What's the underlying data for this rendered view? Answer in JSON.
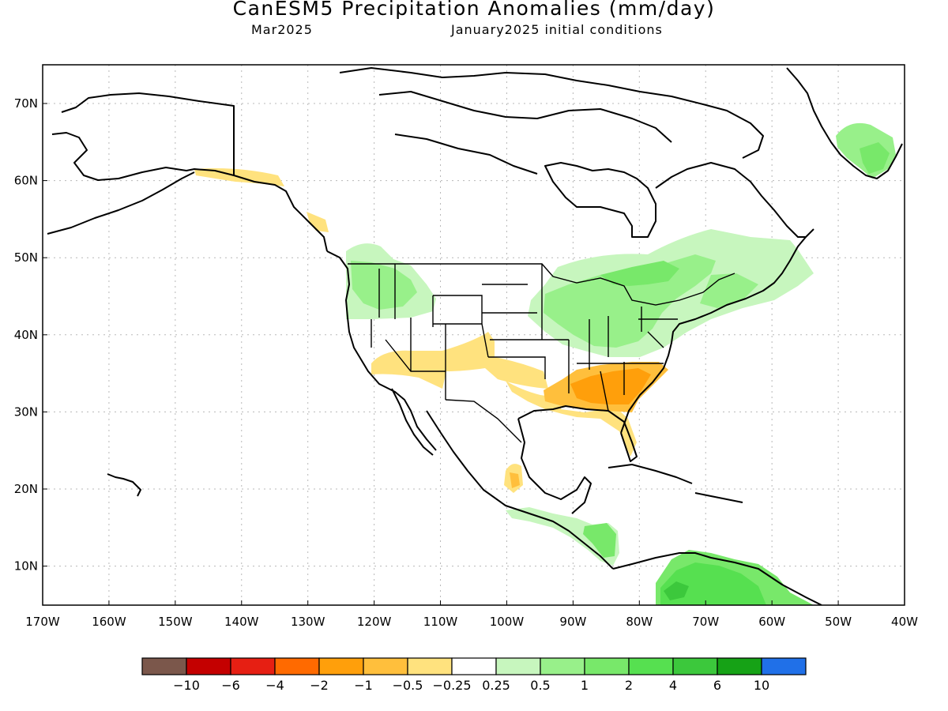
{
  "title": "CanESM5 Precipitation Anomalies (mm/day)",
  "subtitle_left": "Mar2025",
  "subtitle_right": "January2025 initial conditions",
  "lat_labels": [
    "70N",
    "60N",
    "50N",
    "40N",
    "30N",
    "20N",
    "10N"
  ],
  "lon_labels": [
    "170W",
    "160W",
    "150W",
    "140W",
    "130W",
    "120W",
    "110W",
    "100W",
    "90W",
    "80W",
    "70W",
    "60W",
    "50W",
    "40W"
  ],
  "colorbar": {
    "colors": [
      "#7b574b",
      "#c40000",
      "#e61f13",
      "#ff6a00",
      "#ff9f0b",
      "#ffbf3c",
      "#ffe27e",
      "#ffffff",
      "#c7f6be",
      "#98f08a",
      "#78e86a",
      "#56e050",
      "#3cc83c",
      "#16a216",
      "#2070e8"
    ],
    "labels": [
      "−10",
      "−6",
      "−4",
      "−2",
      "−1",
      "−0.5",
      "−0.25",
      "0.25",
      "0.5",
      "1",
      "2",
      "4",
      "6",
      "10"
    ]
  },
  "map": {
    "region": "North America",
    "lon_range": [
      "170W",
      "40W"
    ],
    "lat_range": [
      "5N",
      "75N"
    ],
    "anomaly_regions": [
      {
        "region": "Desert Southwest / southern Rockies",
        "category": "−0.5 to −0.25"
      },
      {
        "region": "Southeastern United States",
        "category": "−2 to −1"
      },
      {
        "region": "Gulf coast",
        "category": "−1 to −0.5"
      },
      {
        "region": "Southern Alaska coast",
        "category": "−0.5 to −0.25"
      },
      {
        "region": "Pacific Northwest / northern Rockies",
        "category": "0.25 to 1"
      },
      {
        "region": "Great Lakes / Northeast / Ohio Valley",
        "category": "0.25 to 2"
      },
      {
        "region": "Eastern Canada",
        "category": "0.25 to 1"
      },
      {
        "region": "Southern Greenland",
        "category": "0.5 to 2"
      },
      {
        "region": "Central America",
        "category": "0.25 to 2"
      },
      {
        "region": "Northern South America",
        "category": "2 to 6"
      }
    ]
  }
}
